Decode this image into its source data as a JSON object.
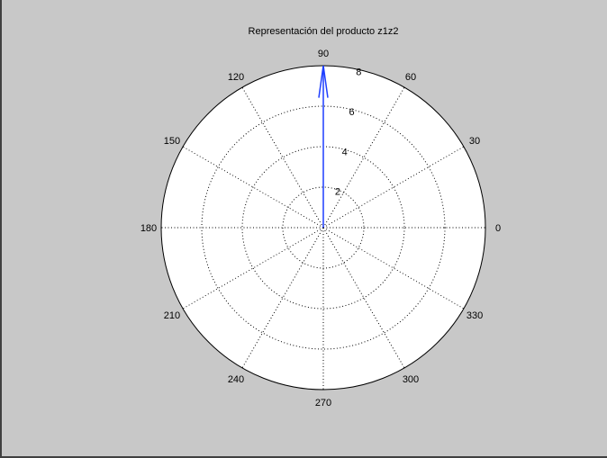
{
  "chart_data": {
    "type": "polar",
    "title": "Representación del producto z1z2",
    "rmax": 8,
    "radial_ticks": [
      2,
      4,
      6,
      8
    ],
    "radial_tick_labels": [
      "2",
      "4",
      "6",
      "8"
    ],
    "angle_ticks": [
      0,
      30,
      60,
      90,
      120,
      150,
      180,
      210,
      240,
      270,
      300,
      330
    ],
    "angle_tick_labels": [
      "0",
      "30",
      "60",
      "90",
      "120",
      "150",
      "180",
      "210",
      "240",
      "270",
      "300",
      "330"
    ],
    "grid": true,
    "series": [
      {
        "kind": "compass-arrow",
        "angle_deg": 90,
        "magnitude": 8,
        "color": "#1f3fff"
      }
    ],
    "colors": {
      "figure_bg": "#c8c8c8",
      "axes_bg": "#ffffff",
      "grid": "#000000"
    }
  }
}
